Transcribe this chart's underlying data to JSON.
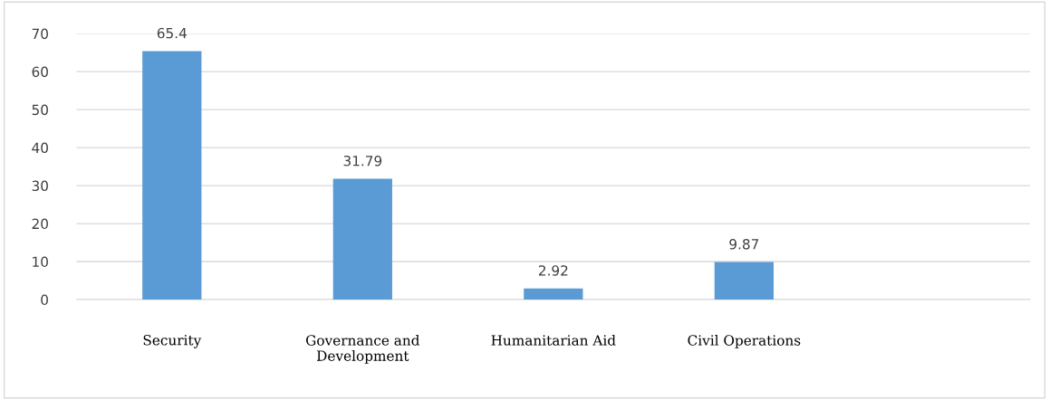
{
  "chart_data": {
    "type": "bar",
    "categories": [
      "Security",
      "Governance and\nDevelopment",
      "Humanitarian Aid",
      "Civil Operations",
      null
    ],
    "values": [
      65.4,
      31.79,
      2.92,
      9.87,
      null
    ],
    "color": "#5b9bd5",
    "ylim": [
      0,
      70
    ],
    "yticks": [
      0,
      10,
      20,
      30,
      40,
      50,
      60,
      70
    ],
    "grid": "y",
    "data_labels": true
  }
}
